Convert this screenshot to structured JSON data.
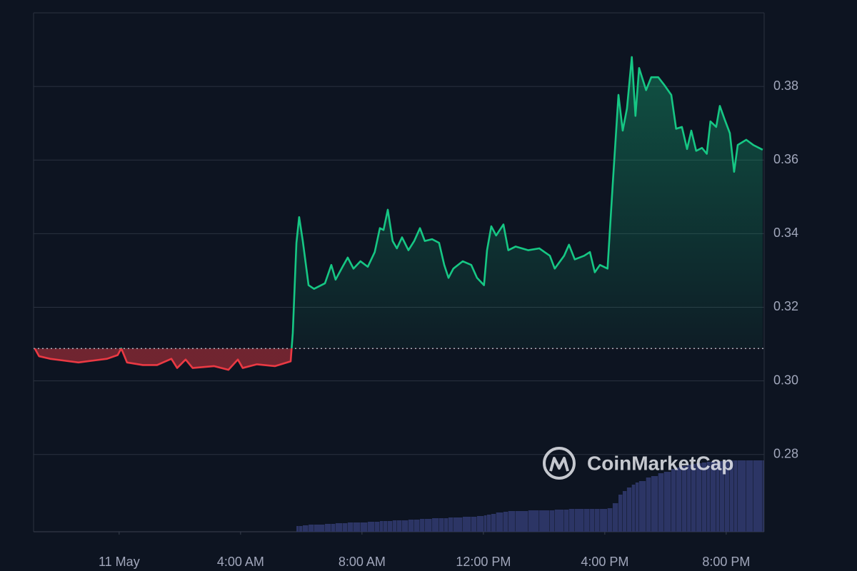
{
  "chart_data": {
    "type": "line",
    "x": [
      -2.78,
      -2.64,
      -2.28,
      -1.81,
      -1.34,
      -0.87,
      -0.4,
      -0.05,
      0.07,
      0.26,
      0.78,
      1.25,
      1.72,
      1.91,
      2.19,
      2.42,
      3.13,
      3.6,
      3.91,
      4.07,
      4.54,
      5.13,
      5.65,
      5.72,
      5.84,
      5.93,
      6.05,
      6.24,
      6.42,
      6.78,
      6.99,
      7.13,
      7.36,
      7.53,
      7.72,
      7.95,
      8.19,
      8.42,
      8.59,
      8.71,
      8.85,
      9.01,
      9.15,
      9.32,
      9.53,
      9.72,
      9.91,
      10.07,
      10.31,
      10.54,
      10.71,
      10.85,
      11.01,
      11.32,
      11.6,
      11.79,
      12.02,
      12.12,
      12.26,
      12.42,
      12.66,
      12.82,
      13.06,
      13.48,
      13.84,
      14.19,
      14.35,
      14.66,
      14.82,
      15.01,
      15.32,
      15.51,
      15.67,
      15.84,
      16.09,
      16.26,
      16.45,
      16.59,
      16.73,
      16.89,
      17.01,
      17.13,
      17.36,
      17.53,
      17.76,
      17.95,
      18.19,
      18.35,
      18.54,
      18.71,
      18.85,
      19.01,
      19.2,
      19.36,
      19.48,
      19.67,
      19.79,
      19.95,
      20.12,
      20.26,
      20.38,
      20.66,
      20.89,
      21.2
    ],
    "series": [
      {
        "color": "#16c784",
        "down_color": "#ea3943",
        "values": [
          0.3088,
          0.3067,
          0.306,
          0.3055,
          0.305,
          0.3055,
          0.306,
          0.307,
          0.3088,
          0.305,
          0.3043,
          0.3043,
          0.306,
          0.3035,
          0.3058,
          0.3035,
          0.304,
          0.303,
          0.3058,
          0.3035,
          0.3045,
          0.304,
          0.3053,
          0.313,
          0.3375,
          0.3445,
          0.338,
          0.326,
          0.325,
          0.3265,
          0.3315,
          0.3275,
          0.331,
          0.3335,
          0.3305,
          0.3325,
          0.331,
          0.335,
          0.3415,
          0.341,
          0.3465,
          0.338,
          0.336,
          0.339,
          0.3355,
          0.338,
          0.3415,
          0.338,
          0.3385,
          0.3375,
          0.3315,
          0.328,
          0.3305,
          0.3325,
          0.3315,
          0.328,
          0.326,
          0.3355,
          0.342,
          0.3395,
          0.3425,
          0.3355,
          0.3365,
          0.3355,
          0.336,
          0.334,
          0.3305,
          0.334,
          0.337,
          0.333,
          0.334,
          0.335,
          0.3295,
          0.3315,
          0.3305,
          0.3533,
          0.3777,
          0.368,
          0.374,
          0.388,
          0.372,
          0.385,
          0.379,
          0.3825,
          0.3825,
          0.3805,
          0.3777,
          0.3685,
          0.369,
          0.363,
          0.368,
          0.3625,
          0.3633,
          0.3617,
          0.3705,
          0.369,
          0.3747,
          0.371,
          0.3673,
          0.3568,
          0.3641,
          0.3655,
          0.3641,
          0.3628
        ]
      },
      {
        "type": "bar",
        "color": "#2c3565",
        "values": [
          null,
          null,
          null,
          null,
          null,
          null,
          null,
          null,
          null,
          null,
          null,
          null,
          null,
          null,
          null,
          null,
          null,
          null,
          null,
          null,
          null,
          null,
          null,
          null,
          8,
          8,
          9,
          10,
          10,
          11,
          11,
          12,
          12,
          13,
          13,
          13,
          14,
          14,
          15,
          15,
          15,
          16,
          16,
          16,
          17,
          17,
          18,
          18,
          19,
          19,
          19,
          20,
          20,
          21,
          21,
          22,
          23,
          24,
          25,
          27,
          28,
          29,
          29,
          30,
          30,
          30,
          31,
          31,
          32,
          32,
          32,
          32,
          32,
          32,
          33,
          40,
          52,
          57,
          62,
          66,
          69,
          71,
          76,
          78,
          82,
          84,
          88,
          90,
          92,
          94,
          95,
          96,
          97,
          98,
          98,
          99,
          99,
          100,
          100,
          100,
          100,
          100,
          100,
          100
        ]
      }
    ],
    "baseline": 0.3088,
    "xlim": [
      -2.82,
      21.25
    ],
    "xticks": [
      {
        "value": 0,
        "label": "11 May"
      },
      {
        "value": 4,
        "label": "4:00 AM"
      },
      {
        "value": 8,
        "label": "8:00 AM"
      },
      {
        "value": 12,
        "label": "12:00 PM"
      },
      {
        "value": 16,
        "label": "4:00 PM"
      },
      {
        "value": 20,
        "label": "8:00 PM"
      }
    ],
    "ylim": [
      0.259,
      0.4
    ],
    "yticks": [
      0.28,
      {
        "value": 0.3,
        "label": "0.30"
      },
      0.32,
      0.34,
      0.36,
      0.38
    ],
    "grid": true,
    "watermark": "CoinMarketCap"
  }
}
